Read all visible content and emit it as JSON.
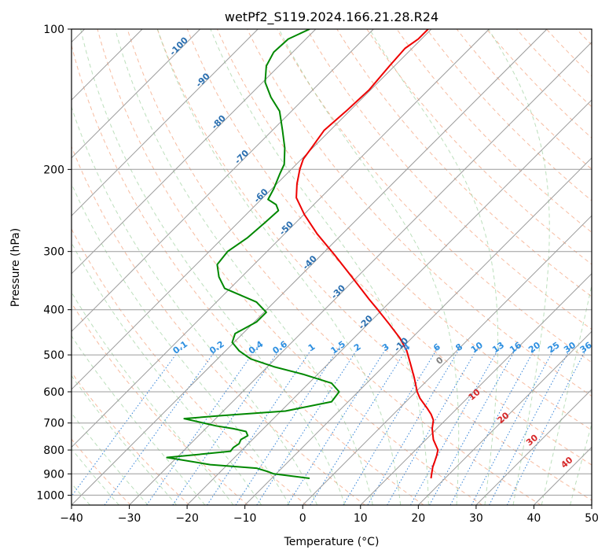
{
  "chart_data": {
    "type": "line",
    "title": "wetPf2_S119.2024.166.21.28.R24",
    "xlabel": "Temperature (°C)",
    "ylabel": "Pressure (hPa)",
    "xlim": [
      -40,
      50
    ],
    "ylim": [
      1050,
      100
    ],
    "y_scale": "log",
    "x_ticks": [
      -40,
      -30,
      -20,
      -10,
      0,
      10,
      20,
      30,
      40,
      50
    ],
    "y_ticks": [
      100,
      200,
      300,
      400,
      500,
      600,
      700,
      800,
      900,
      1000
    ],
    "x_tick_labels": [
      "−40",
      "−30",
      "−20",
      "−10",
      "0",
      "10",
      "20",
      "30",
      "40",
      "50"
    ],
    "y_tick_labels": [
      "100",
      "200",
      "300",
      "400",
      "500",
      "600",
      "700",
      "800",
      "900",
      "1000"
    ],
    "grid": true,
    "series": [
      {
        "color": "#ee0000",
        "points": [
          [
            22.2,
            920
          ],
          [
            22.3,
            900
          ],
          [
            22.5,
            870
          ],
          [
            22.8,
            850
          ],
          [
            23.2,
            820
          ],
          [
            23.4,
            800
          ],
          [
            22.6,
            760
          ],
          [
            22.4,
            720
          ],
          [
            22.6,
            690
          ],
          [
            22.2,
            670
          ],
          [
            21.5,
            650
          ],
          [
            20.3,
            620
          ],
          [
            19.8,
            600
          ],
          [
            19.3,
            560
          ],
          [
            18.6,
            520
          ],
          [
            18.0,
            490
          ],
          [
            16.8,
            460
          ],
          [
            15.0,
            430
          ],
          [
            13.0,
            400
          ],
          [
            11.5,
            380
          ],
          [
            8.5,
            340
          ],
          [
            5.5,
            305
          ],
          [
            2.5,
            275
          ],
          [
            0.3,
            250
          ],
          [
            -1.1,
            230
          ],
          [
            -1.0,
            215
          ],
          [
            -0.5,
            200
          ],
          [
            0.1,
            190
          ],
          [
            1.5,
            180
          ],
          [
            3.7,
            165
          ],
          [
            7.5,
            150
          ],
          [
            11.5,
            135
          ],
          [
            15.0,
            120
          ],
          [
            17.7,
            110
          ],
          [
            20.0,
            105
          ],
          [
            21.7,
            100
          ]
        ]
      },
      {
        "color": "#008800",
        "points": [
          [
            1.2,
            920
          ],
          [
            -5.0,
            900
          ],
          [
            -6.0,
            890
          ],
          [
            -8.0,
            875
          ],
          [
            -16.0,
            860
          ],
          [
            -23.5,
            830
          ],
          [
            -19.0,
            820
          ],
          [
            -12.5,
            805
          ],
          [
            -12.0,
            790
          ],
          [
            -11.0,
            775
          ],
          [
            -10.7,
            760
          ],
          [
            -9.5,
            745
          ],
          [
            -9.8,
            730
          ],
          [
            -12.0,
            720
          ],
          [
            -15.0,
            710
          ],
          [
            -20.5,
            685
          ],
          [
            -14.0,
            675
          ],
          [
            -3.0,
            660
          ],
          [
            5.0,
            630
          ],
          [
            6.3,
            600
          ],
          [
            5.0,
            575
          ],
          [
            0.0,
            550
          ],
          [
            -5.0,
            530
          ],
          [
            -9.0,
            510
          ],
          [
            -11.0,
            490
          ],
          [
            -12.2,
            470
          ],
          [
            -11.7,
            450
          ],
          [
            -8.0,
            425
          ],
          [
            -6.3,
            405
          ],
          [
            -8.0,
            385
          ],
          [
            -13.5,
            360
          ],
          [
            -14.5,
            340
          ],
          [
            -14.8,
            320
          ],
          [
            -13.0,
            300
          ],
          [
            -9.5,
            280
          ],
          [
            -6.5,
            260
          ],
          [
            -4.2,
            245
          ],
          [
            -4.6,
            238
          ],
          [
            -6.0,
            232
          ],
          [
            -5.0,
            220
          ],
          [
            -4.0,
            205
          ],
          [
            -3.2,
            195
          ],
          [
            -3.1,
            180
          ],
          [
            -3.5,
            165
          ],
          [
            -4.0,
            150
          ],
          [
            -5.5,
            140
          ],
          [
            -6.5,
            130
          ],
          [
            -6.3,
            120
          ],
          [
            -5.0,
            112
          ],
          [
            -2.5,
            105
          ],
          [
            1.2,
            100
          ]
        ]
      }
    ],
    "annotations": {
      "dry_adiabats": [
        "-100",
        "-90",
        "-80",
        "-70",
        "-60",
        "-50",
        "-40",
        "-30",
        "-20",
        "-10"
      ],
      "mixing_ratios": [
        "0.1",
        "0.2",
        "0.4",
        "0.6",
        "1",
        "1.5",
        "2",
        "3",
        "4",
        "6",
        "8",
        "10",
        "13",
        "16",
        "20",
        "25",
        "30",
        "36"
      ],
      "moist_adiabats": [
        "0",
        "10",
        "20",
        "30",
        "40"
      ]
    }
  }
}
